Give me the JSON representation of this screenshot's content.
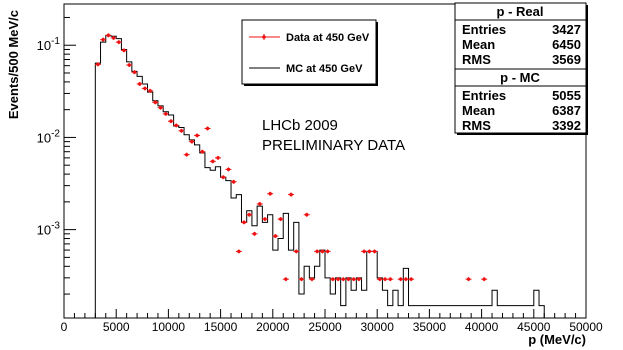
{
  "chart_data": {
    "type": "scatter",
    "log_y": true,
    "x_axis": {
      "label": "p (MeV/c)",
      "range": [
        0,
        50000
      ],
      "ticks": [
        0,
        5000,
        10000,
        15000,
        20000,
        25000,
        30000,
        35000,
        40000,
        45000,
        50000
      ],
      "tick_labels": [
        "0",
        "5000",
        "10000",
        "15000",
        "20000",
        "25000",
        "30000",
        "35000",
        "40000",
        "45000",
        "50000"
      ]
    },
    "y_axis": {
      "label": "Events/500 MeV/c",
      "range": [
        0.00011,
        0.28
      ],
      "ticks": [
        0.001,
        0.01,
        0.1
      ],
      "tick_labels": [
        "10^-3",
        "10^-2",
        "10^-1"
      ]
    },
    "legend": {
      "placement": "top-center",
      "entries": [
        "Data at 450 GeV",
        "MC at 450 GeV"
      ]
    },
    "annotation": [
      "LHCb 2009",
      "PRELIMINARY DATA"
    ],
    "stats": [
      {
        "title": "p - Real",
        "rows": [
          {
            "label": "Entries",
            "value": "3427"
          },
          {
            "label": "Mean",
            "value": "6450"
          },
          {
            "label": "RMS",
            "value": "3569"
          }
        ]
      },
      {
        "title": "p - MC",
        "rows": [
          {
            "label": "Entries",
            "value": "5055"
          },
          {
            "label": "Mean",
            "value": "6387"
          },
          {
            "label": "RMS",
            "value": "3392"
          }
        ]
      }
    ],
    "series": [
      {
        "name": "Data at 450 GeV",
        "style": "points",
        "color": "#ee1111",
        "points": [
          [
            3250,
            0.062
          ],
          [
            3750,
            0.115
          ],
          [
            4250,
            0.128
          ],
          [
            4750,
            0.12
          ],
          [
            5250,
            0.108
          ],
          [
            5750,
            0.088
          ],
          [
            6250,
            0.061
          ],
          [
            6750,
            0.051
          ],
          [
            7250,
            0.038
          ],
          [
            7750,
            0.034
          ],
          [
            8250,
            0.032
          ],
          [
            8750,
            0.024
          ],
          [
            9250,
            0.021
          ],
          [
            9750,
            0.018
          ],
          [
            10250,
            0.015
          ],
          [
            10750,
            0.0135
          ],
          [
            11250,
            0.0118
          ],
          [
            11750,
            0.0065
          ],
          [
            12250,
            0.009
          ],
          [
            12750,
            0.0105
          ],
          [
            13250,
            0.007
          ],
          [
            13750,
            0.0125
          ],
          [
            14250,
            0.0055
          ],
          [
            14750,
            0.006
          ],
          [
            15250,
            0.0037
          ],
          [
            15750,
            0.0045
          ],
          [
            16250,
            0.0033
          ],
          [
            16750,
            0.00058
          ],
          [
            17250,
            0.0012
          ],
          [
            17750,
            0.00145
          ],
          [
            18250,
            0.0009
          ],
          [
            18750,
            0.0019
          ],
          [
            19250,
            0.0013
          ],
          [
            19750,
            0.00245
          ],
          [
            20250,
            0.00085
          ],
          [
            20750,
            0.0013
          ],
          [
            21250,
            0.00029
          ],
          [
            21750,
            0.0024
          ],
          [
            22250,
            0.00058
          ],
          [
            22750,
            0.00029
          ],
          [
            23250,
            0.00145
          ],
          [
            23750,
            0.00029
          ],
          [
            24250,
            0.00058
          ],
          [
            24750,
            0.00058
          ],
          [
            25250,
            0.00058
          ],
          [
            25750,
            0.00029
          ],
          [
            26250,
            0.00029
          ],
          [
            26750,
            0.00029
          ],
          [
            27250,
            0.00029
          ],
          [
            27750,
            0.00029
          ],
          [
            28250,
            0.00029
          ],
          [
            28750,
            0.00058
          ],
          [
            29250,
            0.00058
          ],
          [
            29750,
            0.00058
          ],
          [
            30250,
            0.00029
          ],
          [
            30750,
            0.00029
          ],
          [
            31250,
            0.00029
          ],
          [
            32250,
            0.00029
          ],
          [
            32750,
            0.00029
          ],
          [
            33250,
            0.00029
          ],
          [
            38750,
            0.00029
          ],
          [
            40250,
            0.00029
          ]
        ]
      },
      {
        "name": "MC at 450 GeV",
        "style": "step",
        "color": "#000000",
        "bin_width": 500,
        "bins": [
          [
            3000,
            0.064
          ],
          [
            3500,
            0.108
          ],
          [
            4000,
            0.128
          ],
          [
            4500,
            0.125
          ],
          [
            5000,
            0.118
          ],
          [
            5500,
            0.09
          ],
          [
            6000,
            0.066
          ],
          [
            6500,
            0.052
          ],
          [
            7000,
            0.046
          ],
          [
            7500,
            0.038
          ],
          [
            8000,
            0.031
          ],
          [
            8500,
            0.025
          ],
          [
            9000,
            0.022
          ],
          [
            9500,
            0.019
          ],
          [
            10000,
            0.0175
          ],
          [
            10500,
            0.0133
          ],
          [
            11000,
            0.0128
          ],
          [
            11500,
            0.0107
          ],
          [
            12000,
            0.0094
          ],
          [
            12500,
            0.0083
          ],
          [
            13000,
            0.0068
          ],
          [
            13500,
            0.0047
          ],
          [
            14000,
            0.0044
          ],
          [
            14500,
            0.0048
          ],
          [
            15000,
            0.0037
          ],
          [
            15500,
            0.0034
          ],
          [
            16000,
            0.0022
          ],
          [
            16500,
            0.0024
          ],
          [
            17000,
            0.0012
          ],
          [
            17500,
            0.0016
          ],
          [
            18000,
            0.0011
          ],
          [
            18500,
            0.0018
          ],
          [
            19000,
            0.0012
          ],
          [
            19500,
            0.00145
          ],
          [
            20000,
            0.0006
          ],
          [
            20500,
            0.0008
          ],
          [
            21000,
            0.0015
          ],
          [
            21500,
            0.0006
          ],
          [
            22000,
            0.0012
          ],
          [
            22500,
            0.0002
          ],
          [
            23000,
            0.0004
          ],
          [
            23500,
            0.0003
          ],
          [
            24000,
            0.0004
          ],
          [
            24500,
            0.0006
          ],
          [
            25000,
            0.0003
          ],
          [
            25500,
            0.0002
          ],
          [
            26000,
            0.0003
          ],
          [
            26500,
            0.00015
          ],
          [
            27000,
            0.0003
          ],
          [
            27500,
            0.00022
          ],
          [
            28000,
            0.0003
          ],
          [
            28500,
            0.00022
          ],
          [
            29000,
            0.00058
          ],
          [
            29500,
            0.00058
          ],
          [
            30000,
            0.0003
          ],
          [
            30500,
            0.00022
          ],
          [
            31000,
            0.00015
          ],
          [
            31500,
            0.00022
          ],
          [
            32000,
            0.00015
          ],
          [
            32500,
            0.00038
          ],
          [
            33000,
            0.00015
          ],
          [
            33500,
            0.00015
          ],
          [
            34000,
            0.00015
          ],
          [
            34500,
            0.00015
          ],
          [
            35000,
            0.00015
          ],
          [
            35500,
            0.00015
          ],
          [
            36000,
            0.00015
          ],
          [
            36500,
            0.00015
          ],
          [
            37000,
            0.00015
          ],
          [
            37500,
            0.00015
          ],
          [
            38000,
            0.00015
          ],
          [
            38500,
            0.00015
          ],
          [
            39000,
            0.00015
          ],
          [
            39500,
            0.00015
          ],
          [
            40000,
            0.00015
          ],
          [
            40500,
            0.00015
          ],
          [
            41000,
            0.00022
          ],
          [
            41500,
            0.00015
          ],
          [
            42000,
            0.00015
          ],
          [
            42500,
            0.00015
          ],
          [
            43000,
            0.00015
          ],
          [
            43500,
            0.00015
          ],
          [
            44000,
            0.00015
          ],
          [
            44500,
            0.00015
          ],
          [
            45000,
            0.00022
          ],
          [
            45500,
            0.00015
          ]
        ]
      }
    ]
  }
}
